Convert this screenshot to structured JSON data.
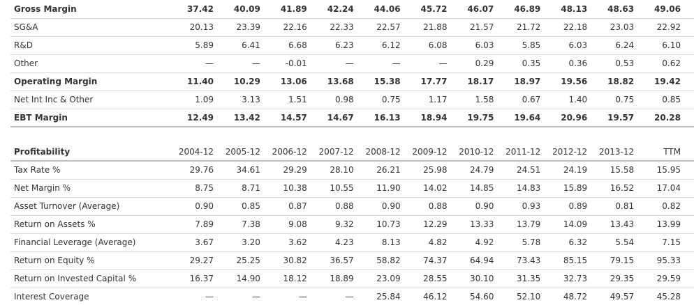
{
  "margins": {
    "rows": [
      [
        "Gross Margin",
        "37.42",
        "40.09",
        "41.89",
        "42.24",
        "44.06",
        "45.72",
        "46.07",
        "46.89",
        "48.13",
        "48.63",
        "49.06"
      ],
      [
        "SG&A",
        "20.13",
        "23.39",
        "22.16",
        "22.33",
        "22.57",
        "21.88",
        "21.57",
        "21.72",
        "22.18",
        "23.03",
        "22.92"
      ],
      [
        "R&D",
        "5.89",
        "6.41",
        "6.68",
        "6.23",
        "6.12",
        "6.08",
        "6.03",
        "5.85",
        "6.03",
        "6.24",
        "6.10"
      ],
      [
        "Other",
        "—",
        "—",
        "-0.01",
        "—",
        "—",
        "—",
        "0.29",
        "0.35",
        "0.36",
        "0.53",
        "0.62"
      ],
      [
        "Operating Margin",
        "11.40",
        "10.29",
        "13.06",
        "13.68",
        "15.38",
        "17.77",
        "18.17",
        "18.97",
        "19.56",
        "18.82",
        "19.42"
      ],
      [
        "Net Int Inc & Other",
        "1.09",
        "3.13",
        "1.51",
        "0.98",
        "0.75",
        "1.17",
        "1.58",
        "0.67",
        "1.40",
        "0.75",
        "0.85"
      ],
      [
        "EBT Margin",
        "12.49",
        "13.42",
        "14.57",
        "14.67",
        "16.13",
        "18.94",
        "19.75",
        "19.64",
        "20.96",
        "19.57",
        "20.28"
      ]
    ]
  },
  "profitability": {
    "header": [
      "Profitability",
      "2004-12",
      "2005-12",
      "2006-12",
      "2007-12",
      "2008-12",
      "2009-12",
      "2010-12",
      "2011-12",
      "2012-12",
      "2013-12",
      "TTM"
    ],
    "rows": [
      [
        "Tax Rate %",
        "29.76",
        "34.61",
        "29.29",
        "28.10",
        "26.21",
        "25.98",
        "24.79",
        "24.51",
        "24.19",
        "15.58",
        "15.95"
      ],
      [
        "Net Margin %",
        "8.75",
        "8.71",
        "10.38",
        "10.55",
        "11.90",
        "14.02",
        "14.85",
        "14.83",
        "15.89",
        "16.52",
        "17.04"
      ],
      [
        "Asset Turnover (Average)",
        "0.90",
        "0.85",
        "0.87",
        "0.88",
        "0.90",
        "0.88",
        "0.90",
        "0.93",
        "0.89",
        "0.81",
        "0.82"
      ],
      [
        "Return on Assets %",
        "7.89",
        "7.38",
        "9.08",
        "9.32",
        "10.73",
        "12.29",
        "13.33",
        "13.79",
        "14.09",
        "13.43",
        "13.99"
      ],
      [
        "Financial Leverage (Average)",
        "3.67",
        "3.20",
        "3.62",
        "4.23",
        "8.13",
        "4.82",
        "4.92",
        "5.78",
        "6.32",
        "5.54",
        "7.15"
      ],
      [
        "Return on Equity %",
        "29.27",
        "25.25",
        "30.82",
        "36.57",
        "58.82",
        "74.37",
        "64.94",
        "73.43",
        "85.15",
        "79.15",
        "95.33"
      ],
      [
        "Return on Invested Capital %",
        "16.37",
        "14.90",
        "18.12",
        "18.89",
        "23.09",
        "28.55",
        "30.10",
        "31.35",
        "32.73",
        "29.35",
        "29.59"
      ],
      [
        "Interest Coverage",
        "—",
        "—",
        "—",
        "—",
        "25.84",
        "46.12",
        "54.60",
        "52.10",
        "48.72",
        "49.57",
        "45.28"
      ]
    ]
  }
}
